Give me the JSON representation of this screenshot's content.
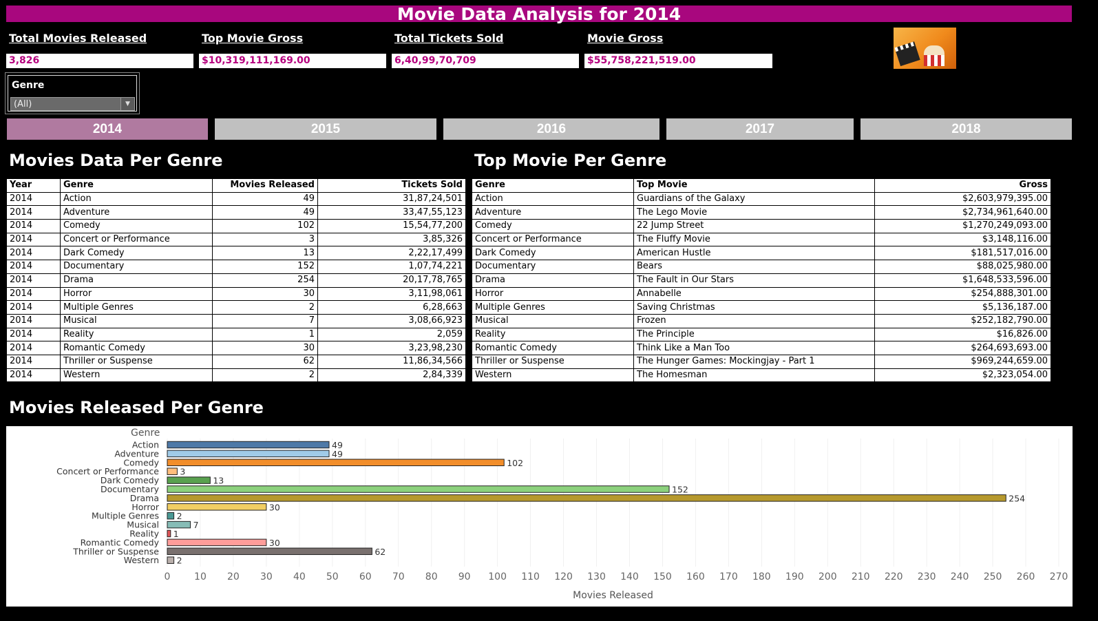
{
  "title": "Movie Data Analysis for 2014",
  "kpis": {
    "total_movies_label": "Total Movies Released",
    "total_movies_value": "3,826",
    "top_gross_label": "Top Movie Gross",
    "top_gross_value": "$10,319,111,169.00",
    "tickets_label": "Total Tickets Sold",
    "tickets_value": "6,40,99,70,709",
    "movie_gross_label": "Movie Gross",
    "movie_gross_value": "$55,758,221,519.00"
  },
  "filter": {
    "label": "Genre",
    "value": "(All)"
  },
  "year_tabs": [
    "2014",
    "2015",
    "2016",
    "2017",
    "2018"
  ],
  "active_year": "2014",
  "genre_table": {
    "title": "Movies Data Per Genre",
    "headers": [
      "Year",
      "Genre",
      "Movies Released",
      "Tickets Sold"
    ],
    "rows": [
      [
        "2014",
        "Action",
        "49",
        "31,87,24,501"
      ],
      [
        "2014",
        "Adventure",
        "49",
        "33,47,55,123"
      ],
      [
        "2014",
        "Comedy",
        "102",
        "15,54,77,200"
      ],
      [
        "2014",
        "Concert or Performance",
        "3",
        "3,85,326"
      ],
      [
        "2014",
        "Dark Comedy",
        "13",
        "2,22,17,499"
      ],
      [
        "2014",
        "Documentary",
        "152",
        "1,07,74,221"
      ],
      [
        "2014",
        "Drama",
        "254",
        "20,17,78,765"
      ],
      [
        "2014",
        "Horror",
        "30",
        "3,11,98,061"
      ],
      [
        "2014",
        "Multiple Genres",
        "2",
        "6,28,663"
      ],
      [
        "2014",
        "Musical",
        "7",
        "3,08,66,923"
      ],
      [
        "2014",
        "Reality",
        "1",
        "2,059"
      ],
      [
        "2014",
        "Romantic Comedy",
        "30",
        "3,23,98,230"
      ],
      [
        "2014",
        "Thriller or Suspense",
        "62",
        "11,86,34,566"
      ],
      [
        "2014",
        "Western",
        "2",
        "2,84,339"
      ]
    ]
  },
  "top_table": {
    "title": "Top Movie Per Genre",
    "headers": [
      "Genre",
      "Top Movie",
      "Gross"
    ],
    "rows": [
      [
        "Action",
        "Guardians of the Galaxy",
        "$2,603,979,395.00"
      ],
      [
        "Adventure",
        "The Lego Movie",
        "$2,734,961,640.00"
      ],
      [
        "Comedy",
        "22 Jump Street",
        "$1,270,249,093.00"
      ],
      [
        "Concert or Performance",
        "The Fluffy Movie",
        "$3,148,116.00"
      ],
      [
        "Dark Comedy",
        "American Hustle",
        "$181,517,016.00"
      ],
      [
        "Documentary",
        "Bears",
        "$88,025,980.00"
      ],
      [
        "Drama",
        "The Fault in Our Stars",
        "$1,648,533,596.00"
      ],
      [
        "Horror",
        "Annabelle",
        "$254,888,301.00"
      ],
      [
        "Multiple Genres",
        "Saving Christmas",
        "$5,136,187.00"
      ],
      [
        "Musical",
        "Frozen",
        "$252,182,790.00"
      ],
      [
        "Reality",
        "The Principle",
        "$16,826.00"
      ],
      [
        "Romantic Comedy",
        "Think Like a Man Too",
        "$264,693,693.00"
      ],
      [
        "Thriller or Suspense",
        "The Hunger Games: Mockingjay - Part 1",
        "$969,244,659.00"
      ],
      [
        "Western",
        "The Homesman",
        "$2,323,054.00"
      ]
    ]
  },
  "chart_section_title": "Movies Released Per Genre",
  "chart_data": {
    "type": "bar",
    "orientation": "horizontal",
    "ylabel": "Genre",
    "xlabel": "Movies Released",
    "xlim": [
      0,
      270
    ],
    "xticks": [
      0,
      10,
      20,
      30,
      40,
      50,
      60,
      70,
      80,
      90,
      100,
      110,
      120,
      130,
      140,
      150,
      160,
      170,
      180,
      190,
      200,
      210,
      220,
      230,
      240,
      250,
      260,
      270
    ],
    "grid": true,
    "categories": [
      "Action",
      "Adventure",
      "Comedy",
      "Concert or Performance",
      "Dark Comedy",
      "Documentary",
      "Drama",
      "Horror",
      "Multiple Genres",
      "Musical",
      "Reality",
      "Romantic Comedy",
      "Thriller or Suspense",
      "Western"
    ],
    "values": [
      49,
      49,
      102,
      3,
      13,
      152,
      254,
      30,
      2,
      7,
      1,
      30,
      62,
      2
    ],
    "colors": [
      "#4e79a7",
      "#a0cbe8",
      "#f28e2b",
      "#ffbe7d",
      "#59a14f",
      "#8cd17d",
      "#b6992d",
      "#f1ce63",
      "#499894",
      "#86bcb6",
      "#e15759",
      "#ff9d9a",
      "#79706e",
      "#bab0ac"
    ]
  }
}
